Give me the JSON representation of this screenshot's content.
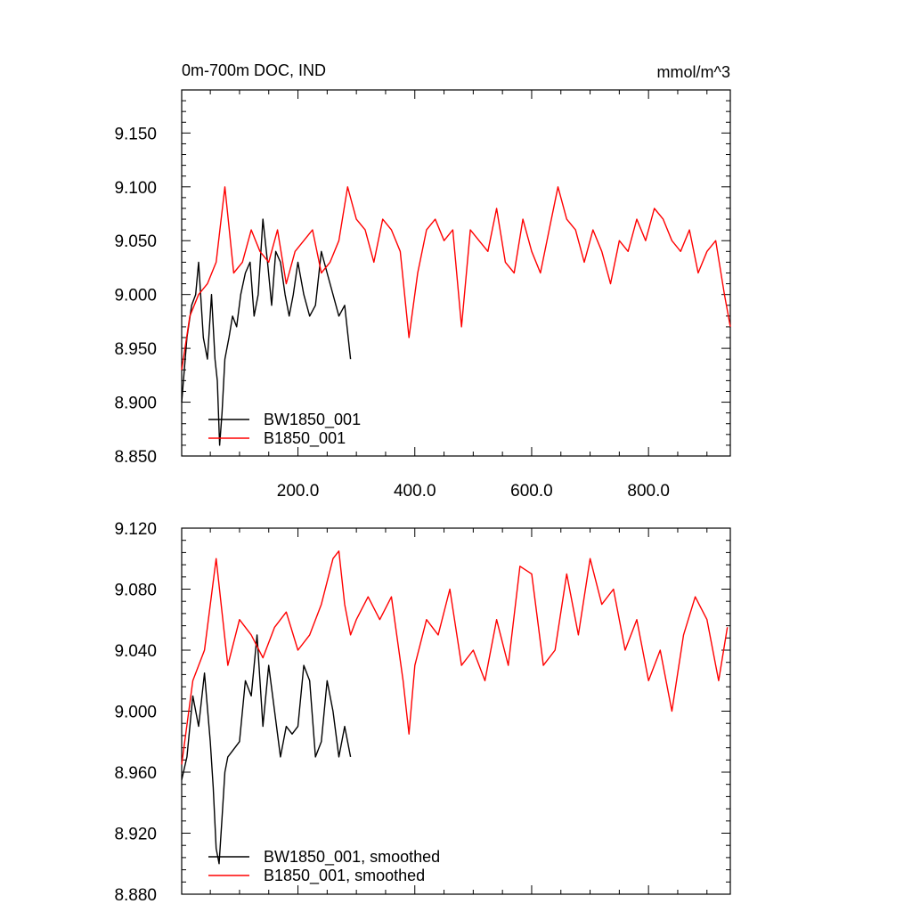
{
  "chart_data": [
    {
      "type": "line",
      "title_left": "0m-700m DOC, IND",
      "title_right": "mmol/m^3",
      "xlabel": "",
      "ylabel": "",
      "xlim": [
        1,
        940
      ],
      "ylim": [
        8.85,
        9.19
      ],
      "x_ticks": [
        200,
        400,
        600,
        800
      ],
      "x_tick_labels": [
        "200.0",
        "400.0",
        "600.0",
        "800.0"
      ],
      "y_ticks": [
        8.85,
        8.9,
        8.95,
        9.0,
        9.05,
        9.1,
        9.15
      ],
      "y_tick_labels": [
        "8.850",
        "8.900",
        "8.950",
        "9.000",
        "9.050",
        "9.100",
        "9.150"
      ],
      "grid": false,
      "legend_position": "bottom-left",
      "series": [
        {
          "name": "BW1850_001",
          "color": "#000000",
          "x": [
            1,
            10,
            18,
            25,
            30,
            38,
            45,
            52,
            58,
            62,
            66,
            70,
            75,
            82,
            88,
            95,
            102,
            110,
            118,
            125,
            132,
            140,
            148,
            155,
            162,
            170,
            178,
            185,
            192,
            200,
            210,
            220,
            230,
            240,
            250,
            260,
            270,
            280,
            290
          ],
          "values": [
            8.9,
            8.96,
            8.99,
            9.0,
            9.03,
            8.96,
            8.94,
            9.0,
            8.94,
            8.92,
            8.86,
            8.89,
            8.94,
            8.96,
            8.98,
            8.97,
            9.0,
            9.02,
            9.03,
            8.98,
            9.0,
            9.07,
            9.03,
            8.99,
            9.04,
            9.03,
            9.0,
            8.98,
            9.0,
            9.03,
            9.0,
            8.98,
            8.99,
            9.04,
            9.02,
            9.0,
            8.98,
            8.99,
            8.94
          ]
        },
        {
          "name": "B1850_001",
          "color": "#ff0000",
          "x": [
            1,
            15,
            30,
            45,
            60,
            75,
            90,
            105,
            120,
            135,
            150,
            165,
            180,
            195,
            210,
            225,
            240,
            255,
            270,
            285,
            300,
            315,
            330,
            345,
            360,
            375,
            390,
            405,
            420,
            435,
            450,
            465,
            480,
            495,
            510,
            525,
            540,
            555,
            570,
            585,
            600,
            615,
            630,
            645,
            660,
            675,
            690,
            705,
            720,
            735,
            750,
            765,
            780,
            795,
            810,
            825,
            840,
            855,
            870,
            885,
            900,
            915,
            930,
            940
          ],
          "values": [
            8.93,
            8.98,
            9.0,
            9.01,
            9.03,
            9.1,
            9.02,
            9.03,
            9.06,
            9.04,
            9.03,
            9.06,
            9.01,
            9.04,
            9.05,
            9.06,
            9.02,
            9.03,
            9.05,
            9.1,
            9.07,
            9.06,
            9.03,
            9.07,
            9.06,
            9.04,
            8.96,
            9.02,
            9.06,
            9.07,
            9.05,
            9.06,
            8.97,
            9.06,
            9.05,
            9.04,
            9.08,
            9.03,
            9.02,
            9.07,
            9.04,
            9.02,
            9.06,
            9.1,
            9.07,
            9.06,
            9.03,
            9.06,
            9.04,
            9.01,
            9.05,
            9.04,
            9.07,
            9.05,
            9.08,
            9.07,
            9.05,
            9.04,
            9.06,
            9.02,
            9.04,
            9.05,
            9.0,
            8.97
          ]
        }
      ]
    },
    {
      "type": "line",
      "title_left": "",
      "title_right": "",
      "xlabel": "",
      "ylabel": "",
      "xlim": [
        1,
        940
      ],
      "ylim": [
        8.88,
        9.12
      ],
      "x_ticks": [
        200,
        400,
        600,
        800
      ],
      "x_tick_labels": [],
      "y_ticks": [
        8.88,
        8.92,
        8.96,
        9.0,
        9.04,
        9.08,
        9.12
      ],
      "y_tick_labels": [
        "8.880",
        "8.920",
        "8.960",
        "9.000",
        "9.040",
        "9.080",
        "9.120"
      ],
      "grid": false,
      "legend_position": "bottom-left",
      "series": [
        {
          "name": "BW1850_001, smoothed",
          "color": "#000000",
          "x": [
            1,
            10,
            20,
            30,
            40,
            50,
            55,
            60,
            65,
            70,
            75,
            80,
            90,
            100,
            110,
            120,
            130,
            140,
            150,
            160,
            170,
            180,
            190,
            200,
            210,
            220,
            230,
            240,
            250,
            260,
            270,
            280,
            290
          ],
          "values": [
            8.955,
            8.97,
            9.01,
            8.99,
            9.025,
            8.98,
            8.95,
            8.91,
            8.9,
            8.93,
            8.96,
            8.97,
            8.975,
            8.98,
            9.02,
            9.01,
            9.05,
            8.99,
            9.03,
            9.0,
            8.97,
            8.99,
            8.985,
            8.99,
            9.03,
            9.02,
            8.97,
            8.98,
            9.02,
            9.0,
            8.97,
            8.99,
            8.97
          ]
        },
        {
          "name": "B1850_001, smoothed",
          "color": "#ff0000",
          "x": [
            1,
            20,
            40,
            60,
            80,
            100,
            120,
            140,
            160,
            180,
            200,
            220,
            240,
            260,
            270,
            280,
            290,
            300,
            320,
            340,
            360,
            380,
            390,
            400,
            420,
            440,
            460,
            480,
            500,
            520,
            540,
            560,
            580,
            600,
            620,
            640,
            660,
            680,
            700,
            720,
            740,
            760,
            780,
            800,
            820,
            840,
            860,
            880,
            900,
            920,
            935
          ],
          "values": [
            8.965,
            9.02,
            9.04,
            9.1,
            9.03,
            9.06,
            9.05,
            9.035,
            9.055,
            9.065,
            9.04,
            9.05,
            9.07,
            9.1,
            9.105,
            9.07,
            9.05,
            9.06,
            9.075,
            9.06,
            9.075,
            9.02,
            8.985,
            9.03,
            9.06,
            9.05,
            9.08,
            9.03,
            9.04,
            9.02,
            9.06,
            9.03,
            9.095,
            9.09,
            9.03,
            9.04,
            9.09,
            9.05,
            9.1,
            9.07,
            9.08,
            9.04,
            9.06,
            9.02,
            9.04,
            9.0,
            9.05,
            9.075,
            9.06,
            9.02,
            9.055
          ]
        }
      ]
    }
  ]
}
